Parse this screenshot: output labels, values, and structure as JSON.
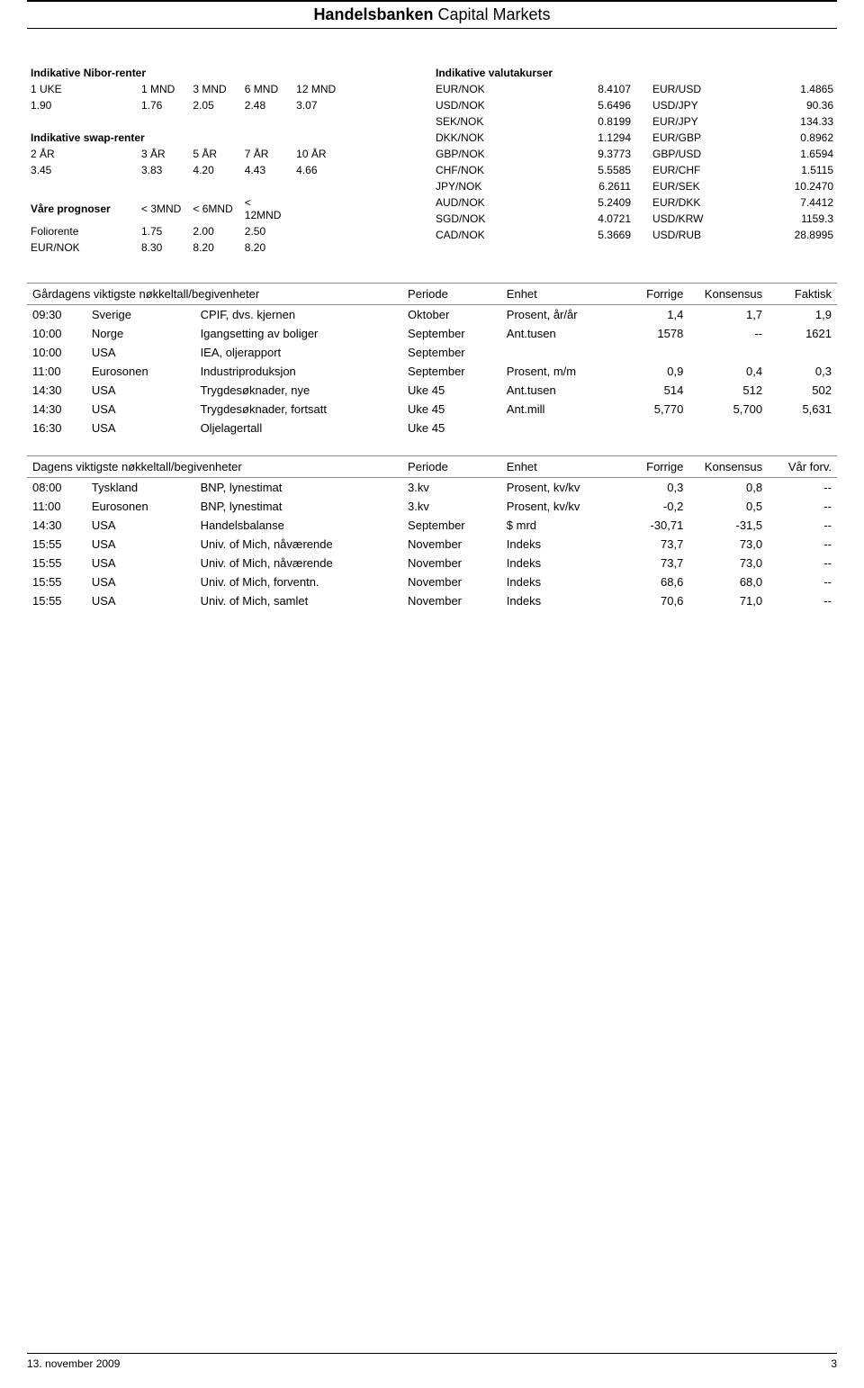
{
  "header": {
    "bold": "Handelsbanken",
    "light": "Capital Markets"
  },
  "nibor": {
    "title": "Indikative Nibor-renter",
    "cols": [
      "1 UKE",
      "1 MND",
      "3 MND",
      "6 MND",
      "12 MND"
    ],
    "vals": [
      "1.90",
      "1.76",
      "2.05",
      "2.48",
      "3.07"
    ]
  },
  "swap": {
    "title": "Indikative swap-renter",
    "cols": [
      "2 ÅR",
      "3 ÅR",
      "5 ÅR",
      "7 ÅR",
      "10 ÅR"
    ],
    "vals": [
      "3.45",
      "3.83",
      "4.20",
      "4.43",
      "4.66"
    ]
  },
  "prognoser": {
    "title": "Våre prognoser",
    "cols": [
      "< 3MND",
      "< 6MND",
      "< 12MND"
    ],
    "rows": [
      {
        "label": "Foliorente",
        "vals": [
          "1.75",
          "2.00",
          "2.50"
        ]
      },
      {
        "label": "EUR/NOK",
        "vals": [
          "8.30",
          "8.20",
          "8.20"
        ]
      }
    ]
  },
  "fx": {
    "title": "Indikative valutakurser",
    "rows": [
      [
        "EUR/NOK",
        "8.4107",
        "EUR/USD",
        "1.4865"
      ],
      [
        "USD/NOK",
        "5.6496",
        "USD/JPY",
        "90.36"
      ],
      [
        "SEK/NOK",
        "0.8199",
        "EUR/JPY",
        "134.33"
      ],
      [
        "DKK/NOK",
        "1.1294",
        "EUR/GBP",
        "0.8962"
      ],
      [
        "GBP/NOK",
        "9.3773",
        "GBP/USD",
        "1.6594"
      ],
      [
        "CHF/NOK",
        "5.5585",
        "EUR/CHF",
        "1.5115"
      ],
      [
        "JPY/NOK",
        "6.2611",
        "EUR/SEK",
        "10.2470"
      ],
      [
        "AUD/NOK",
        "5.2409",
        "EUR/DKK",
        "7.4412"
      ],
      [
        "SGD/NOK",
        "4.0721",
        "USD/KRW",
        "1159.3"
      ],
      [
        "CAD/NOK",
        "5.3669",
        "USD/RUB",
        "28.8995"
      ]
    ]
  },
  "yesterday": {
    "title": "Gårdagens viktigste nøkkeltall/begivenheter",
    "headers": [
      "Periode",
      "Enhet",
      "Forrige",
      "Konsensus",
      "Faktisk"
    ],
    "rows": [
      [
        "09:30",
        "Sverige",
        "CPIF, dvs. kjernen",
        "Oktober",
        "Prosent, år/år",
        "1,4",
        "1,7",
        "1,9"
      ],
      [
        "10:00",
        "Norge",
        "Igangsetting av boliger",
        "September",
        "Ant.tusen",
        "1578",
        "--",
        "1621"
      ],
      [
        "10:00",
        "USA",
        "IEA, oljerapport",
        "September",
        "",
        "",
        "",
        ""
      ],
      [
        "11:00",
        "Eurosonen",
        "Industriproduksjon",
        "September",
        "Prosent, m/m",
        "0,9",
        "0,4",
        "0,3"
      ],
      [
        "14:30",
        "USA",
        "Trygdesøknader, nye",
        "Uke 45",
        "Ant.tusen",
        "514",
        "512",
        "502"
      ],
      [
        "14:30",
        "USA",
        "Trygdesøknader, fortsatt",
        "Uke 45",
        "Ant.mill",
        "5,770",
        "5,700",
        "5,631"
      ],
      [
        "16:30",
        "USA",
        "Oljelagertall",
        "Uke 45",
        "",
        "",
        "",
        ""
      ]
    ]
  },
  "today": {
    "title": "Dagens viktigste nøkkeltall/begivenheter",
    "headers": [
      "Periode",
      "Enhet",
      "Forrige",
      "Konsensus",
      "Vår forv."
    ],
    "rows": [
      [
        "08:00",
        "Tyskland",
        "BNP, lynestimat",
        "3.kv",
        "Prosent, kv/kv",
        "0,3",
        "0,8",
        "--"
      ],
      [
        "11:00",
        "Eurosonen",
        "BNP, lynestimat",
        "3.kv",
        "Prosent, kv/kv",
        "-0,2",
        "0,5",
        "--"
      ],
      [
        "14:30",
        "USA",
        "Handelsbalanse",
        "September",
        "$ mrd",
        "-30,71",
        "-31,5",
        "--"
      ],
      [
        "15:55",
        "USA",
        "Univ. of Mich, nåværende",
        "November",
        "Indeks",
        "73,7",
        "73,0",
        "--"
      ],
      [
        "15:55",
        "USA",
        "Univ. of Mich, nåværende",
        "November",
        "Indeks",
        "73,7",
        "73,0",
        "--"
      ],
      [
        "15:55",
        "USA",
        "Univ. of Mich, forventn.",
        "November",
        "Indeks",
        "68,6",
        "68,0",
        "--"
      ],
      [
        "15:55",
        "USA",
        "Univ. of Mich, samlet",
        "November",
        "Indeks",
        "70,6",
        "71,0",
        "--"
      ]
    ]
  },
  "footer": {
    "date": "13. november 2009",
    "page": "3"
  }
}
